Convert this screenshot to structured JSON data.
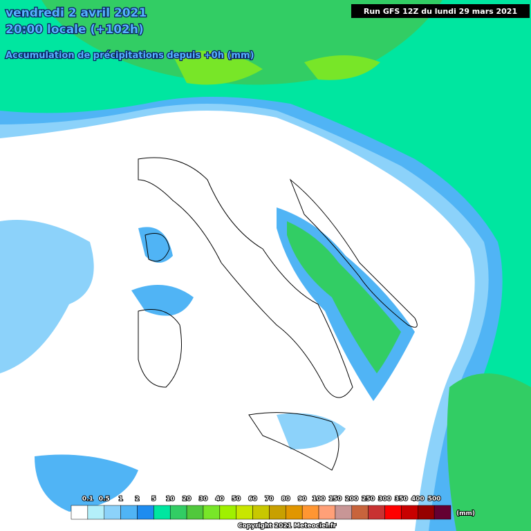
{
  "header": {
    "date": "vendredi 2 avril 2021",
    "time": "20:00 locale (+102h)",
    "subtitle": "Accumulation de précipitations depuis +0h (mm)",
    "run": "Run GFS 12Z du lundi 29 mars 2021"
  },
  "legend": {
    "unit": "(mm)",
    "labels": [
      "0.1",
      "0.5",
      "1",
      "2",
      "5",
      "10",
      "20",
      "30",
      "40",
      "50",
      "60",
      "70",
      "80",
      "90",
      "100",
      "150",
      "200",
      "250",
      "300",
      "350",
      "400",
      "500"
    ],
    "colors": [
      "#ffffff",
      "#b4f0fa",
      "#8cd2fa",
      "#50b4f5",
      "#1e8cf0",
      "#00e6a0",
      "#32cd64",
      "#50c83c",
      "#78e628",
      "#a0f000",
      "#c8e600",
      "#c8c800",
      "#c8a000",
      "#e19600",
      "#ff9632",
      "#ffa078",
      "#c89696",
      "#c8643c",
      "#c83232",
      "#ff0000",
      "#c80000",
      "#960000",
      "#640032",
      "#9650f0"
    ]
  },
  "footer": {
    "copyright": "Copyright 2021 Meteociel.fr"
  }
}
